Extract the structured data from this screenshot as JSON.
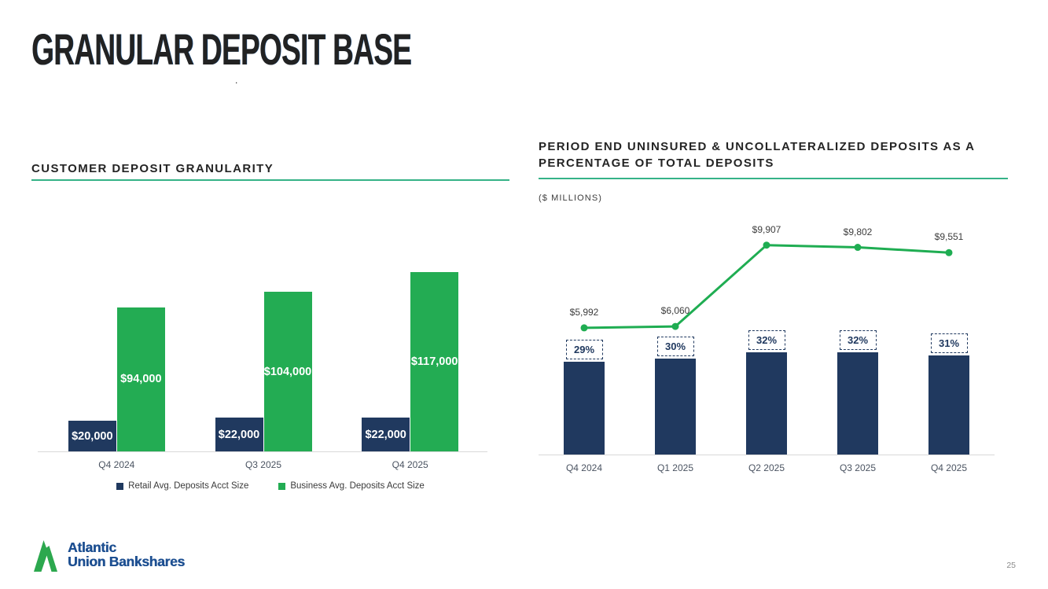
{
  "slide": {
    "title": "GRANULAR DEPOSIT BASE",
    "footnote_dot": ".",
    "page_number": "25"
  },
  "logo": {
    "line1": "Atlantic",
    "line2": "Union Bankshares"
  },
  "colors": {
    "navy": "#20395f",
    "green": "#23ac53",
    "line_green": "#1fad52",
    "title_blue": "#1a5492",
    "rule_green": "#35b287"
  },
  "chart_data": [
    {
      "type": "bar",
      "title": "CUSTOMER DEPOSIT GRANULARITY",
      "categories": [
        "Q4 2024",
        "Q3 2025",
        "Q4 2025"
      ],
      "series": [
        {
          "name": "Retail Avg. Deposits Acct Size",
          "color": "#20395f",
          "values": [
            20000,
            22000,
            22000
          ],
          "labels": [
            "$20,000",
            "$22,000",
            "$22,000"
          ]
        },
        {
          "name": "Business Avg. Deposits Acct Size",
          "color": "#23ac53",
          "values": [
            94000,
            104000,
            117000
          ],
          "labels": [
            "$94,000",
            "$104,000",
            "$117,000"
          ]
        }
      ],
      "ylim": [
        0,
        120000
      ],
      "grid": false,
      "legend_position": "bottom"
    },
    {
      "type": "bar+line",
      "title": "PERIOD END UNINSURED & UNCOLLATERALIZED DEPOSITS AS A PERCENTAGE OF TOTAL DEPOSITS",
      "subtitle": "($ MILLIONS)",
      "categories": [
        "Q4 2024",
        "Q1 2025",
        "Q2 2025",
        "Q3 2025",
        "Q4 2025"
      ],
      "bar_series": {
        "name": "Percentage of total deposits",
        "color": "#20395f",
        "values": [
          29,
          30,
          32,
          32,
          31
        ],
        "labels": [
          "29%",
          "30%",
          "32%",
          "32%",
          "31%"
        ],
        "axis_max": 72
      },
      "line_series": {
        "name": "Uninsured & uncollateralized deposits ($ millions)",
        "color": "#1fad52",
        "values": [
          5992,
          6060,
          9907,
          9802,
          9551
        ],
        "labels": [
          "$5,992",
          "$6,060",
          "$9,907",
          "$9,802",
          "$9,551"
        ],
        "axis_max": 10900
      },
      "grid": false
    }
  ]
}
